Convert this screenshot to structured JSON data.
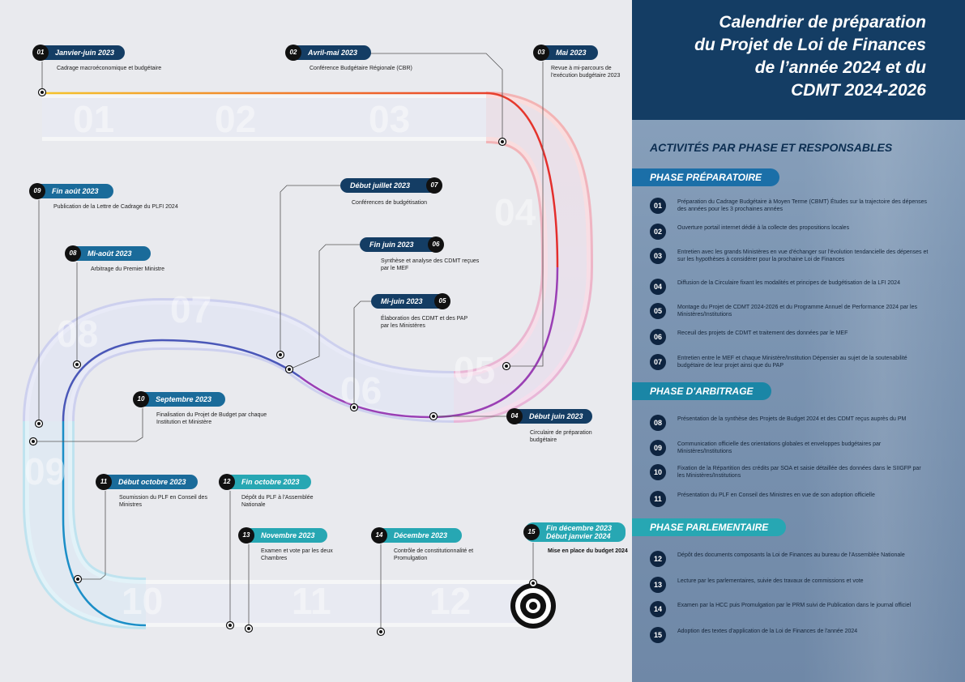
{
  "title": {
    "lines": [
      "Calendrier de préparation",
      "du Projet de Loi de Finances",
      "de l’année 2024 et du",
      "CDMT 2024-2026"
    ]
  },
  "section_title": "ACTIVITÉS PAR PHASE ET RESPONSABLES",
  "phases": [
    {
      "name": "PHASE PRÉPARATOIRE",
      "color": "#1b6fa8",
      "activities": [
        {
          "num": "01",
          "text": "Préparation du Cadrage Budgétaire à Moyen Terme (CBMT) Études sur la trajectoire des dépenses des années pour les 3 prochaines années"
        },
        {
          "num": "02",
          "text": "Ouverture portail internet dédié à la collecte des propositions locales"
        },
        {
          "num": "03",
          "text": "Entretien avec les grands Ministères en vue d'échanger sur l'évolution tendancielle des dépenses et sur les hypothèses à considérer pour la prochaine Loi de Finances"
        },
        {
          "num": "04",
          "text": "Diffusion de la Circulaire fixant les modalités et principes de budgétisation de la LFI 2024"
        },
        {
          "num": "05",
          "text": "Montage du Projet de CDMT 2024-2026 et du Programme Annuel de Performance 2024 par les Ministères/Institutions"
        },
        {
          "num": "06",
          "text": "Receuil des projets de CDMT et traitement des données par le MEF"
        },
        {
          "num": "07",
          "text": "Entretien entre le MEF et chaque Ministère/Institution Dépensier au sujet de la soutenabilité budgétaire de leur projet ainsi que du PAP"
        }
      ]
    },
    {
      "name": "PHASE D'ARBITRAGE",
      "color": "#1a86a6",
      "activities": [
        {
          "num": "08",
          "text": "Présentation de la synthèse des Projets de Budget 2024 et des CDMT reçus auprès du PM"
        },
        {
          "num": "09",
          "text": "Communication officielle des orientations globales et enveloppes budgétaires par Ministères/Institutions"
        },
        {
          "num": "10",
          "text": "Fixation de la Répartition des crédits par SOA et saisie détaillée des données dans le SIIGFP par les Ministères/Institutions"
        },
        {
          "num": "11",
          "text": "Présentation du PLF en Conseil des Ministres en vue de son adoption officielle"
        }
      ]
    },
    {
      "name": "PHASE PARLEMENTAIRE",
      "color": "#27a7b3",
      "activities": [
        {
          "num": "12",
          "text": "Dépôt des documents composants la Loi de Finances au bureau de l'Assemblée Nationale"
        },
        {
          "num": "13",
          "text": "Lecture par les parlementaires, suivie des travaux de commissions et vote"
        },
        {
          "num": "14",
          "text": "Examen par la HCC puis Promulgation par le PRM suivi de Publication dans le journal officiel"
        },
        {
          "num": "15",
          "text": "Adoption des textes d'application de la Loi de Finances de l'année 2024"
        }
      ]
    }
  ],
  "road_months": [
    "01",
    "02",
    "03",
    "04",
    "05",
    "06",
    "07",
    "08",
    "09",
    "10",
    "11",
    "12"
  ],
  "milestones": [
    {
      "num": "01",
      "date": "Janvier-juin 2023",
      "label": "Cadrage macroéconomique et budgétaire",
      "color": "#143d64"
    },
    {
      "num": "02",
      "date": "Avril-mai 2023",
      "label": "Conférence Budgétaire Régionale (CBR)",
      "color": "#143d64"
    },
    {
      "num": "03",
      "date": "Mai 2023",
      "label": "Revue à mi-parcours de l'exécution budgétaire 2023",
      "color": "#143d64"
    },
    {
      "num": "04",
      "date": "Début juin 2023",
      "label": "Circulaire de préparation budgétaire",
      "color": "#143d64"
    },
    {
      "num": "05",
      "date": "Mi-juin 2023",
      "label": "Élaboration des CDMT et des PAP par les Ministères",
      "color": "#143d64"
    },
    {
      "num": "06",
      "date": "Fin juin 2023",
      "label": "Synthèse et analyse des CDMT reçues par le MEF",
      "color": "#143d64"
    },
    {
      "num": "07",
      "date": "Début juillet 2023",
      "label": "Conférences de budgétisation",
      "color": "#143d64"
    },
    {
      "num": "08",
      "date": "Mi-août 2023",
      "label": "Arbitrage du Premier Ministre",
      "color": "#1a6b9a"
    },
    {
      "num": "09",
      "date": "Fin août 2023",
      "label": "Publication de la Lettre de Cadrage du PLFI 2024",
      "color": "#1a6b9a"
    },
    {
      "num": "10",
      "date": "Septembre 2023",
      "label": "Finalisation du Projet de Budget par chaque Institution et Ministère",
      "color": "#1a6b9a"
    },
    {
      "num": "11",
      "date": "Début octobre 2023",
      "label": "Soumission du PLF en Conseil des Ministres",
      "color": "#1a6b9a"
    },
    {
      "num": "12",
      "date": "Fin octobre 2023",
      "label": "Dépôt du PLF à l'Assemblée Nationale",
      "color": "#27a7b3"
    },
    {
      "num": "13",
      "date": "Novembre 2023",
      "label": "Examen et vote par les deux Chambres",
      "color": "#27a7b3"
    },
    {
      "num": "14",
      "date": "Décembre 2023",
      "label": "Contrôle de constitutionnalité et Promulgation",
      "color": "#27a7b3"
    },
    {
      "num": "15",
      "date": "Fin décembre 2023 Début janvier 2024",
      "label": "Mise en place du budget 2024",
      "color": "#27a7b3"
    }
  ]
}
